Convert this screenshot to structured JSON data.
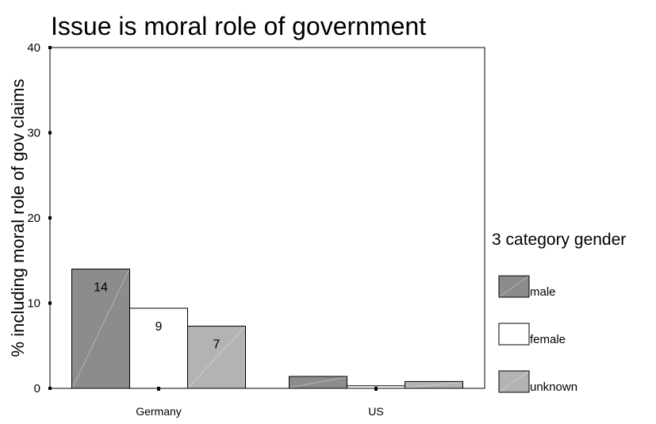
{
  "chart_data": {
    "type": "bar",
    "title": "Issue is moral role of government",
    "xlabel": "",
    "ylabel": "% including moral role of gov claims",
    "categories": [
      "Germany",
      "US"
    ],
    "series": [
      {
        "name": "male",
        "values": [
          14,
          1.4
        ],
        "color": "#8c8c8c",
        "labels": [
          "14",
          ""
        ]
      },
      {
        "name": "female",
        "values": [
          9.4,
          0.3
        ],
        "color": "#ffffff",
        "labels": [
          "9",
          ""
        ]
      },
      {
        "name": "unknown",
        "values": [
          7.3,
          0.8
        ],
        "color": "#b3b3b3",
        "labels": [
          "7",
          ""
        ]
      }
    ],
    "ylim": [
      0,
      40
    ],
    "yticks": [
      "0",
      "10",
      "20",
      "30",
      "40"
    ],
    "legend": {
      "title": "3 category gender",
      "position": "right"
    },
    "grid": false
  }
}
